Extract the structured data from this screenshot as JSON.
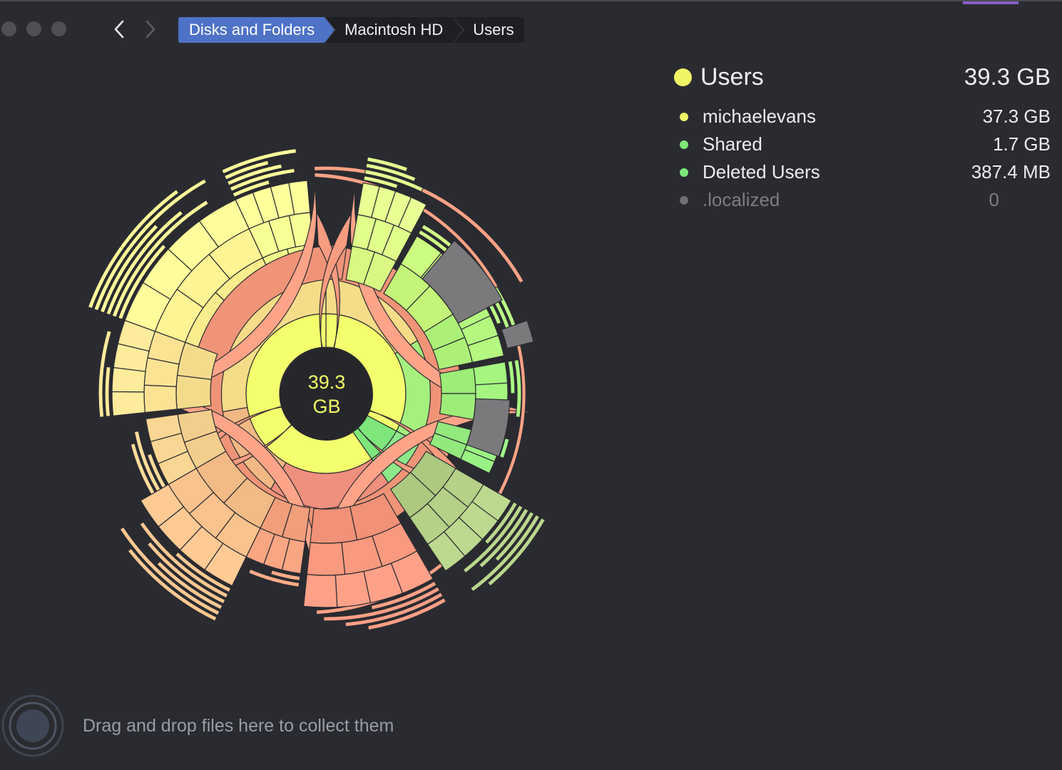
{
  "window": {
    "traffic_lights": [
      "close",
      "minimize",
      "zoom"
    ],
    "accent_color": "#8a5cc8"
  },
  "toolbar": {
    "back_icon": "chevron-left-icon",
    "forward_icon": "chevron-right-icon",
    "breadcrumbs": [
      {
        "label": "Disks and Folders",
        "active": true
      },
      {
        "label": "Macintosh HD",
        "active": false
      },
      {
        "label": "Users",
        "active": false
      }
    ]
  },
  "legend": {
    "title": "Users",
    "total": "39.3 GB",
    "title_color": "#f0f566",
    "items": [
      {
        "name": "michaelevans",
        "size": "37.3 GB",
        "color": "#f0f566",
        "muted": false
      },
      {
        "name": "Shared",
        "size": "1.7 GB",
        "color": "#7ee87a",
        "muted": false
      },
      {
        "name": "Deleted Users",
        "size": "387.4  MB",
        "color": "#7ee87a",
        "muted": false
      },
      {
        "name": ".localized",
        "size": "0",
        "color": "#6e6f74",
        "muted": true
      }
    ]
  },
  "sunburst": {
    "center_value": "39.3",
    "center_unit": "GB"
  },
  "dropzone": {
    "text": "Drag and drop files here to collect them",
    "icon": "collect-target-icon"
  }
}
